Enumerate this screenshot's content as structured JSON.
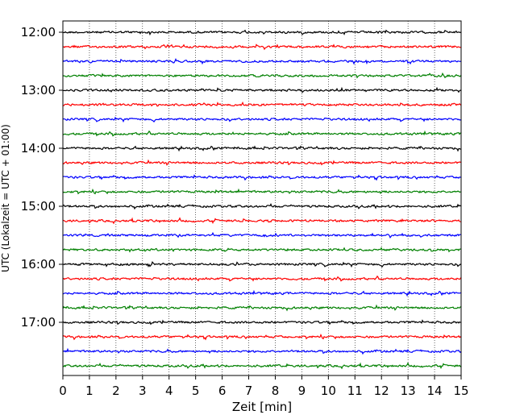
{
  "chart_data": {
    "type": "line",
    "title": "",
    "xlabel": "Zeit  [min]",
    "ylabel": "UTC (Lokalzeit = UTC + 01:00)",
    "xlim": [
      0,
      15
    ],
    "x_ticks": [
      0,
      1,
      2,
      3,
      4,
      5,
      6,
      7,
      8,
      9,
      10,
      11,
      12,
      13,
      14,
      15
    ],
    "y_tick_labels": [
      "12:00",
      "13:00",
      "14:00",
      "15:00",
      "16:00",
      "17:00"
    ],
    "trace_interval_minutes": 15,
    "start_time": "12:00",
    "trace_count": 24,
    "trace_colors": [
      "#000000",
      "#ff0000",
      "#0000ff",
      "#008000"
    ],
    "grid": {
      "x": true,
      "y": false,
      "style": "dotted"
    },
    "legend": "none"
  }
}
